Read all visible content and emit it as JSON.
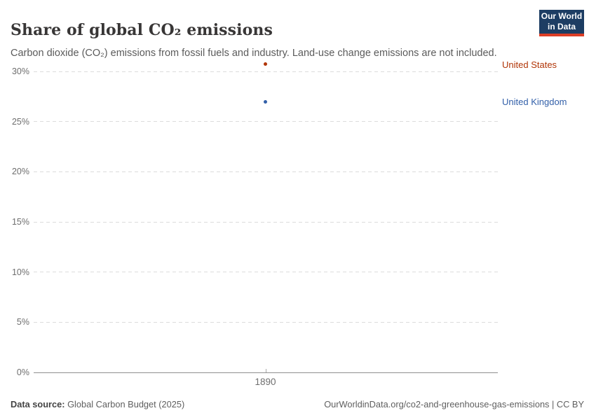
{
  "header": {
    "title": "Share of global CO₂ emissions",
    "subtitle": "Carbon dioxide (CO₂) emissions from fossil fuels and industry. Land-use change emissions are not included.",
    "logo": {
      "line1": "Our World",
      "line2": "in Data",
      "bg_color": "#1d3d63",
      "accent_color": "#dc3e26"
    }
  },
  "chart_data": {
    "type": "scatter",
    "x": [
      1890
    ],
    "x_tick_labels": [
      "1890"
    ],
    "yticks": [
      0,
      5,
      10,
      15,
      20,
      25,
      30
    ],
    "ytick_suffix": "%",
    "ylim": [
      0,
      31
    ],
    "grid": true,
    "legend_position": "right-entity-labels",
    "series": [
      {
        "name": "United States",
        "values": [
          30.7
        ],
        "color": "#b13507"
      },
      {
        "name": "United Kingdom",
        "values": [
          27.0
        ],
        "color": "#3360a9"
      }
    ]
  },
  "footer": {
    "source_label": "Data source:",
    "source_text": "Global Carbon Budget (2025)",
    "attribution": "OurWorldinData.org/co2-and-greenhouse-gas-emissions | CC BY"
  }
}
